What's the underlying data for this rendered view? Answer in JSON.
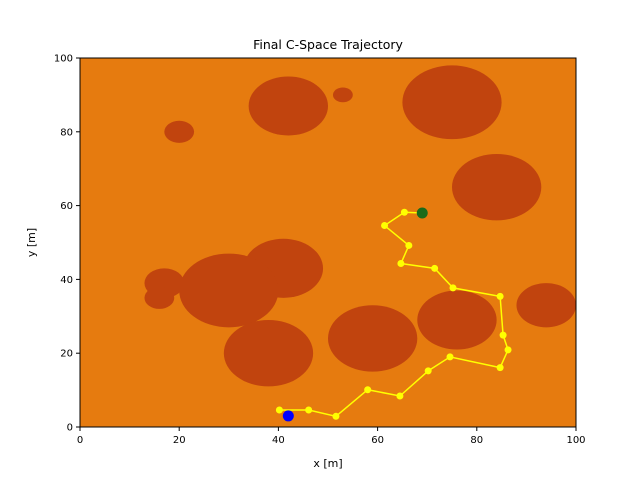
{
  "chart_data": {
    "type": "scatter",
    "title": "Final C-Space Trajectory",
    "xlabel": "x [m]",
    "ylabel": "y [m]",
    "xlim": [
      0,
      100
    ],
    "ylim": [
      0,
      100
    ],
    "x_ticks": [
      0,
      20,
      40,
      60,
      80,
      100
    ],
    "y_ticks": [
      0,
      20,
      40,
      60,
      80,
      100
    ],
    "grid": false,
    "colors": {
      "background": "#e67b0f",
      "obstacle": "#c1440e",
      "path": "#ffff00",
      "start": "#0000ff",
      "goal": "#1a6b1a"
    },
    "obstacles": [
      {
        "cx": 42,
        "cy": 87,
        "rx": 8,
        "ry": 8
      },
      {
        "cx": 75,
        "cy": 88,
        "rx": 10,
        "ry": 10
      },
      {
        "cx": 84,
        "cy": 65,
        "rx": 9,
        "ry": 9
      },
      {
        "cx": 53,
        "cy": 90,
        "rx": 2,
        "ry": 2
      },
      {
        "cx": 20,
        "cy": 80,
        "rx": 3,
        "ry": 3
      },
      {
        "cx": 41,
        "cy": 43,
        "rx": 8,
        "ry": 8
      },
      {
        "cx": 30,
        "cy": 37,
        "rx": 10,
        "ry": 10
      },
      {
        "cx": 17,
        "cy": 39,
        "rx": 4,
        "ry": 4
      },
      {
        "cx": 16,
        "cy": 35,
        "rx": 3,
        "ry": 3
      },
      {
        "cx": 38,
        "cy": 20,
        "rx": 9,
        "ry": 9
      },
      {
        "cx": 59,
        "cy": 24,
        "rx": 9,
        "ry": 9
      },
      {
        "cx": 76,
        "cy": 29,
        "rx": 8,
        "ry": 8
      },
      {
        "cx": 94,
        "cy": 33,
        "rx": 6,
        "ry": 6
      }
    ],
    "path": [
      {
        "x": 40.2,
        "y": 4.6
      },
      {
        "x": 46.1,
        "y": 4.6
      },
      {
        "x": 51.6,
        "y": 2.9
      },
      {
        "x": 58.0,
        "y": 10.1
      },
      {
        "x": 64.5,
        "y": 8.4
      },
      {
        "x": 70.2,
        "y": 15.2
      },
      {
        "x": 74.6,
        "y": 19.0
      },
      {
        "x": 84.7,
        "y": 16.1
      },
      {
        "x": 86.3,
        "y": 20.9
      },
      {
        "x": 85.3,
        "y": 24.9
      },
      {
        "x": 84.7,
        "y": 35.4
      },
      {
        "x": 75.2,
        "y": 37.7
      },
      {
        "x": 71.5,
        "y": 43.0
      },
      {
        "x": 64.7,
        "y": 44.3
      },
      {
        "x": 66.3,
        "y": 49.2
      },
      {
        "x": 61.4,
        "y": 54.6
      },
      {
        "x": 65.4,
        "y": 58.2
      },
      {
        "x": 69.0,
        "y": 58.0
      }
    ],
    "start": {
      "x": 42.0,
      "y": 3.0
    },
    "goal": {
      "x": 69.0,
      "y": 58.0
    }
  }
}
